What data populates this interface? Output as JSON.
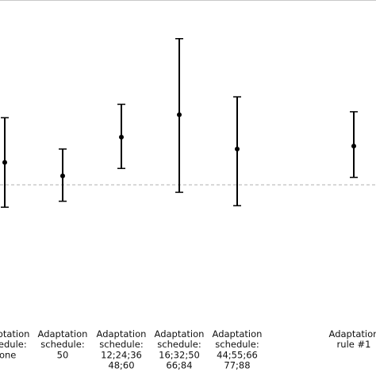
{
  "chart_data": {
    "type": "scatter",
    "title": "",
    "xlabel": "",
    "ylabel": "",
    "grid": false,
    "legend": "none",
    "error_bars": true,
    "y_axis_shown": false,
    "ylim": [
      -1.8,
      1.15
    ],
    "reference_line": {
      "y": 0,
      "style": "dashed",
      "color": "#b0b0b0"
    },
    "categories": [
      {
        "label_lines": [
          "Adaptation",
          "schedule:",
          "none"
        ]
      },
      {
        "label_lines": [
          "Adaptation",
          "schedule:",
          "50"
        ]
      },
      {
        "label_lines": [
          "Adaptation",
          "schedule:",
          "12;24;36",
          "48;60"
        ]
      },
      {
        "label_lines": [
          "Adaptation",
          "schedule:",
          "16;32;50",
          "66;84"
        ]
      },
      {
        "label_lines": [
          "Adaptation",
          "schedule:",
          "44;55;66",
          "77;88"
        ]
      },
      {
        "label_lines": []
      },
      {
        "label_lines": [
          "Adaptation",
          "rule #1"
        ]
      }
    ],
    "series": [
      {
        "points": [
          {
            "category_index": 0,
            "y": 0.15,
            "lower": -0.15,
            "upper": 0.45
          },
          {
            "category_index": 1,
            "y": 0.06,
            "lower": -0.11,
            "upper": 0.24
          },
          {
            "category_index": 2,
            "y": 0.32,
            "lower": 0.11,
            "upper": 0.54
          },
          {
            "category_index": 3,
            "y": 0.47,
            "lower": -0.05,
            "upper": 0.98
          },
          {
            "category_index": 4,
            "y": 0.24,
            "lower": -0.14,
            "upper": 0.59
          },
          {
            "category_index": 6,
            "y": 0.26,
            "lower": 0.05,
            "upper": 0.49
          }
        ]
      }
    ],
    "colors": {
      "marks": "#000000",
      "reference_line": "#b0b0b0",
      "text": "#111111"
    }
  }
}
